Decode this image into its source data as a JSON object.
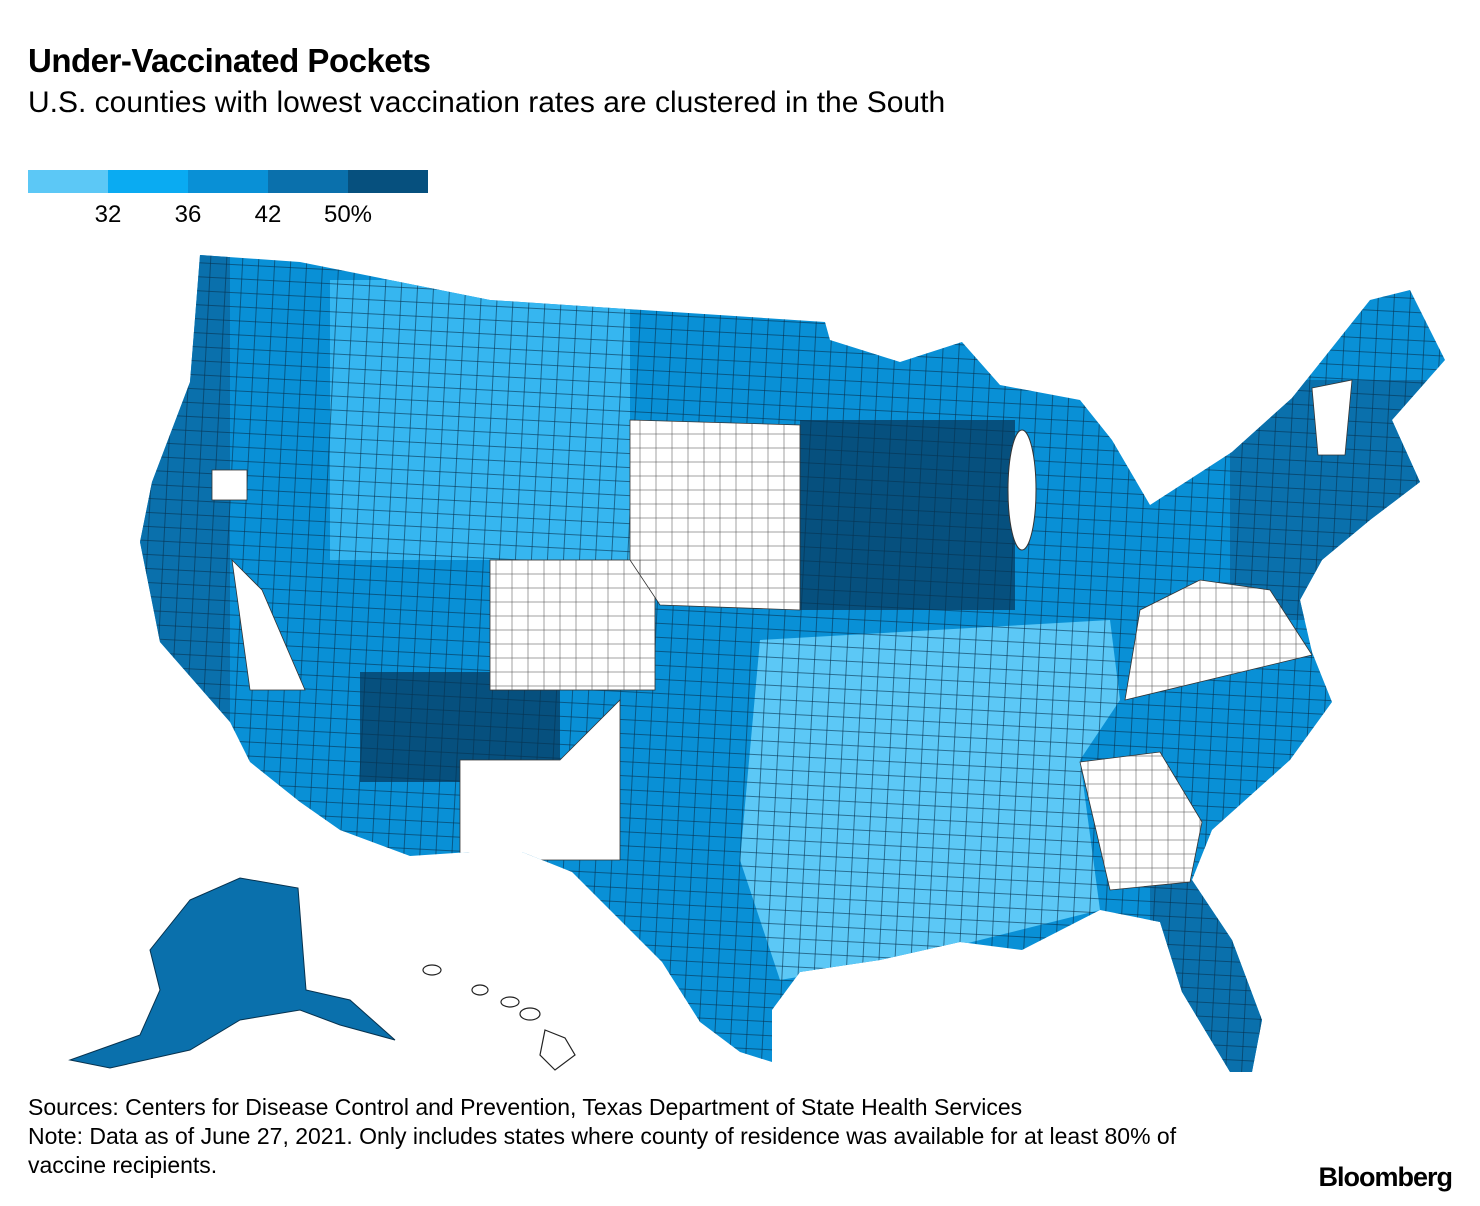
{
  "header": {
    "title": "Under-Vaccinated Pockets",
    "subtitle": "U.S. counties with lowest vaccination rates are clustered in the South"
  },
  "legend": {
    "colors": [
      "#5cc8f6",
      "#0aabf2",
      "#0990d6",
      "#0a70ac",
      "#06507e"
    ],
    "ticks": [
      32,
      36,
      42,
      {
        "value": 50,
        "label": "50%"
      }
    ]
  },
  "footer": {
    "sources": "Sources: Centers for Disease Control and Prevention, Texas Department of State Health Services",
    "note": "Note: Data as of June 27, 2021. Only includes states where county of residence was available for at least 80% of vaccine recipients.",
    "logo": "Bloomberg"
  }
}
